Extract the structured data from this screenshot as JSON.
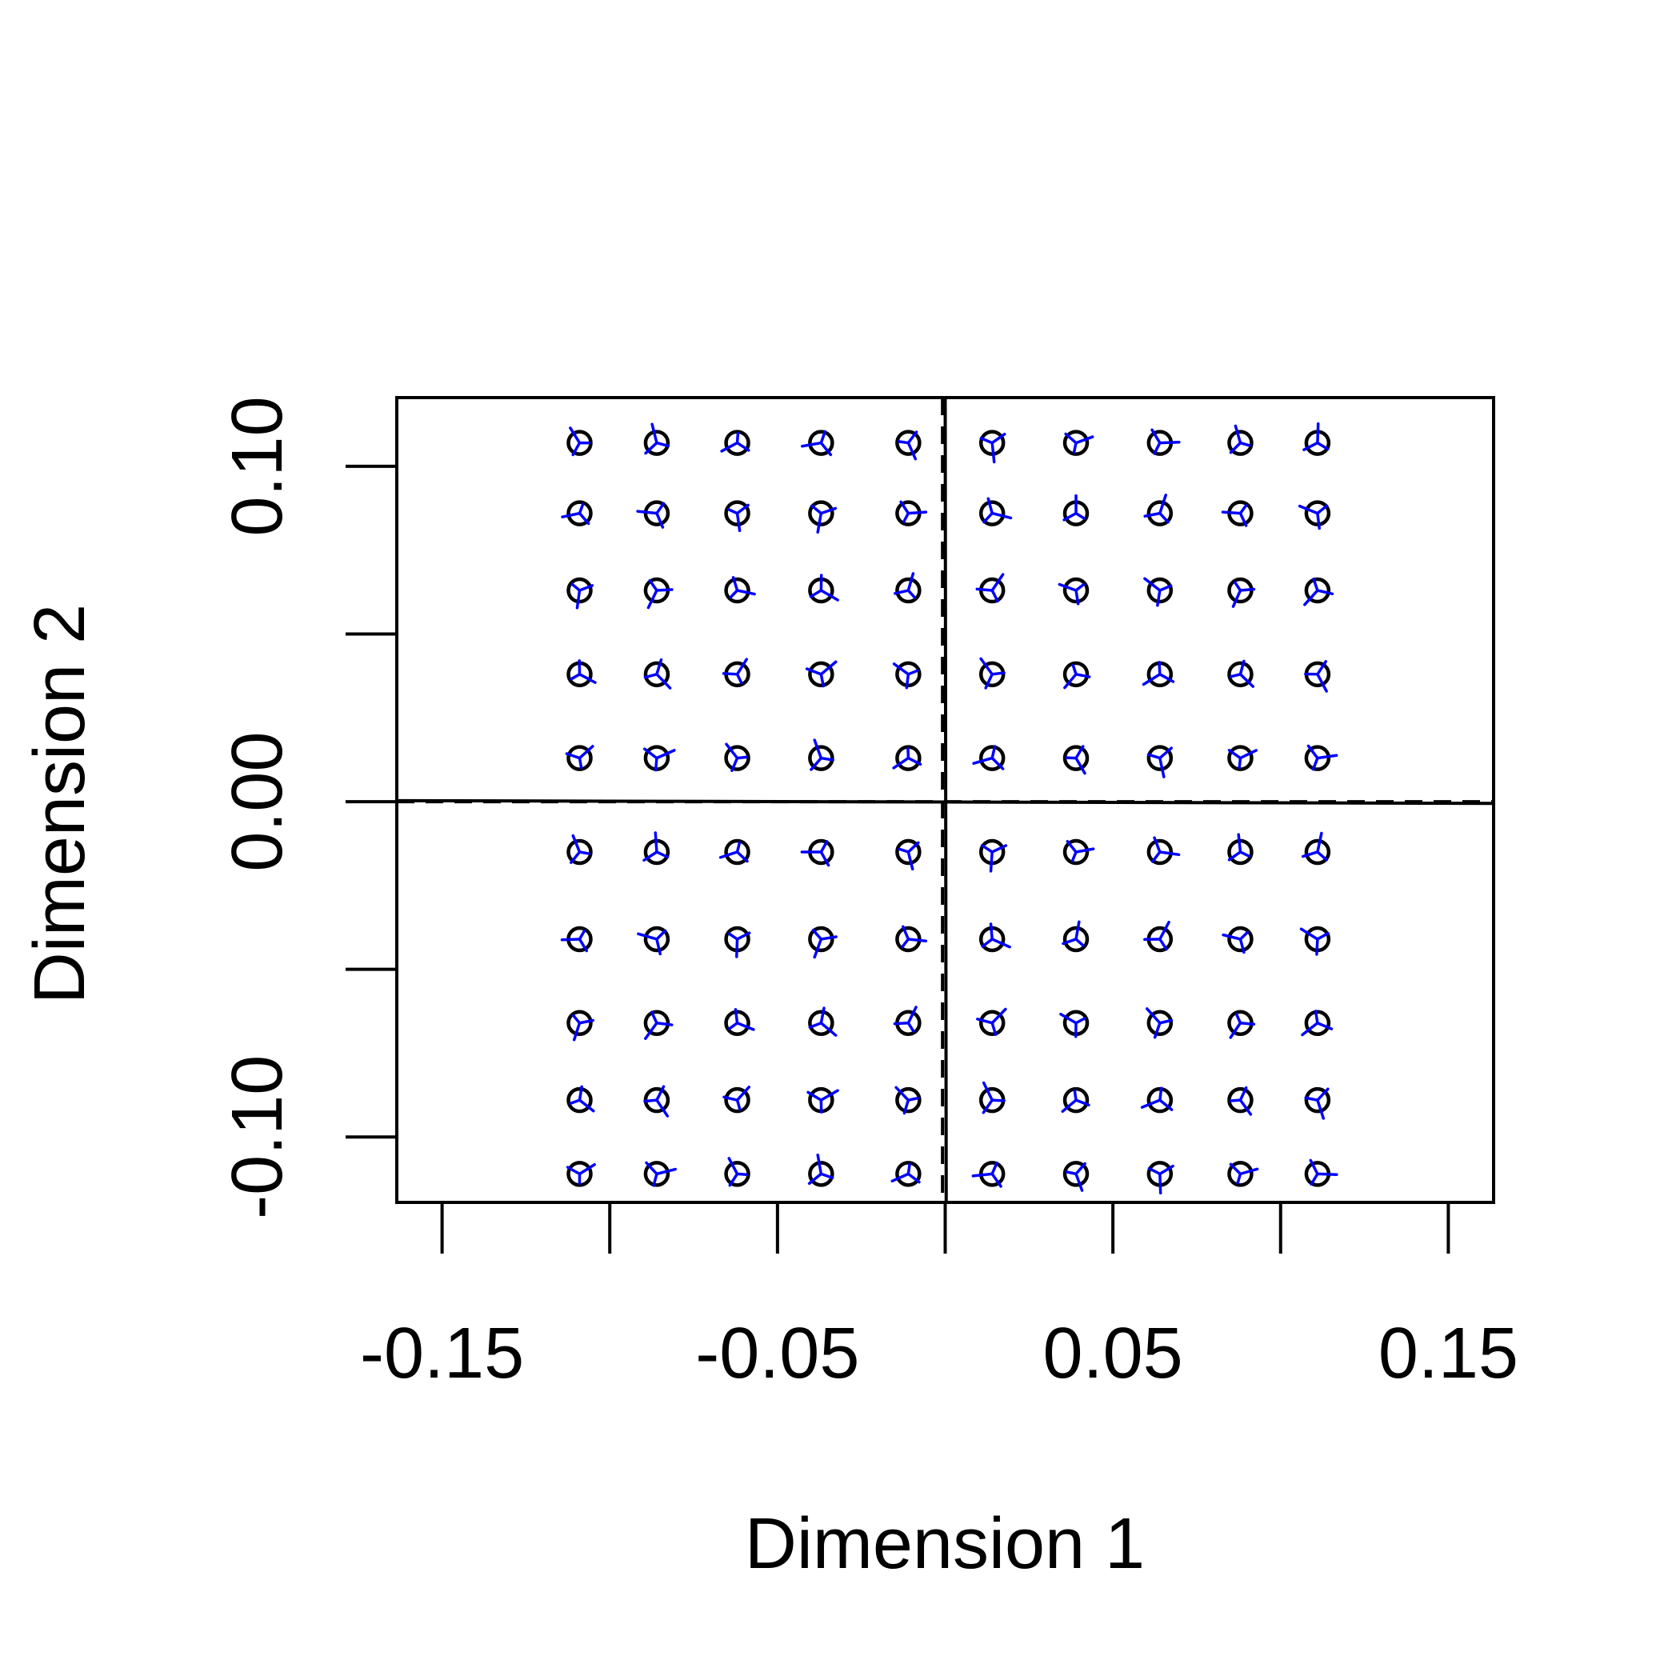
{
  "chart_data": {
    "type": "scatter",
    "title": "",
    "xlabel": "Dimension 1",
    "ylabel": "Dimension 2",
    "xlim": [
      -0.1635,
      0.1635
    ],
    "ylim": [
      -0.1195,
      0.1205
    ],
    "x_ticks": [
      -0.15,
      -0.1,
      -0.05,
      0,
      0.05,
      0.1,
      0.15
    ],
    "x_tick_labels": [
      "-0.15",
      "",
      "-0.05",
      "",
      "0.05",
      "",
      "0.15"
    ],
    "y_ticks": [
      -0.1,
      -0.05,
      0.0,
      0.05,
      0.1
    ],
    "y_tick_labels": [
      "-0.10",
      "",
      "0.00",
      "",
      "0.10"
    ],
    "grid": false,
    "reference_lines": {
      "solid": "horizontal and vertical through the origin",
      "dashed": "rotated axes"
    },
    "colors": {
      "points": "#000000",
      "vectors": "#0000ff"
    },
    "rows_y": [
      0.107,
      0.086,
      0.063,
      0.038,
      0.013,
      -0.015,
      -0.041,
      -0.066,
      -0.089,
      -0.111
    ],
    "cols_x": [
      -0.109,
      -0.086,
      -0.062,
      -0.037,
      -0.011,
      0.014,
      0.039,
      0.064,
      0.088,
      0.111
    ]
  }
}
